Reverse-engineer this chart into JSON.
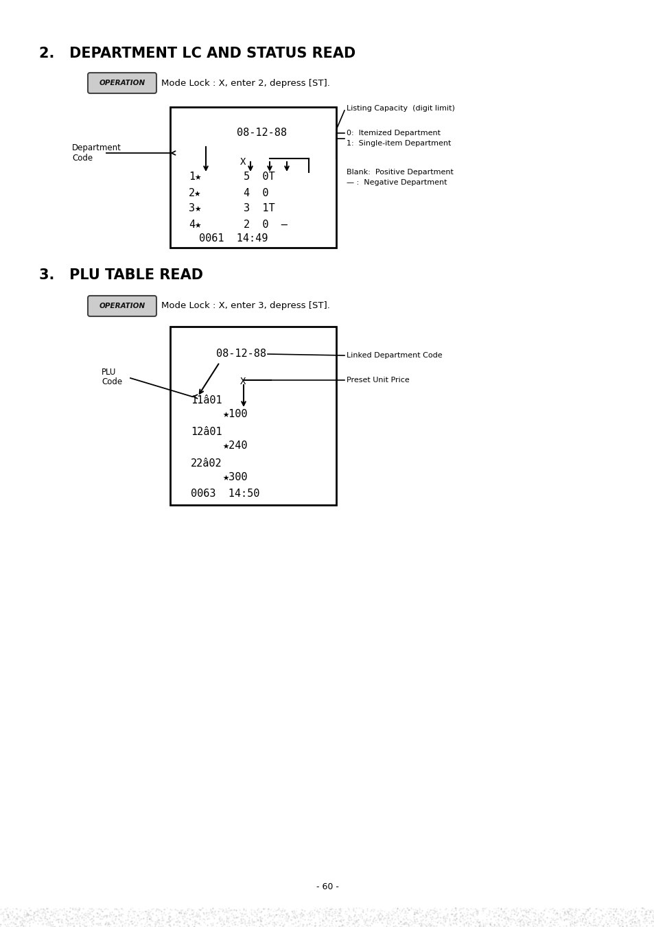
{
  "title1": "2.   DEPARTMENT LC AND STATUS READ",
  "title2": "3.   PLU TABLE READ",
  "op_text": "OPERATION",
  "mode_lock1": "Mode Lock : X, enter 2, depress [ST].",
  "mode_lock2": "Mode Lock : X, enter 3, depress [ST].",
  "dept_label_line1": "Department",
  "dept_label_line2": "Code",
  "annot_listing": "Listing Capacity  (digit limit)",
  "annot_itemized": "0:  Itemized Department",
  "annot_single": "1:  Single-item Department",
  "annot_blank": "Blank:  Positive Department",
  "annot_neg": "— :  Negative Department",
  "plu_label_line1": "PLU",
  "plu_label_line2": "Code",
  "annot_linked": "Linked Department Code",
  "annot_preset": "Preset Unit Price",
  "page_num": "- 60 -",
  "bg_color": "#ffffff",
  "text_color": "#000000"
}
